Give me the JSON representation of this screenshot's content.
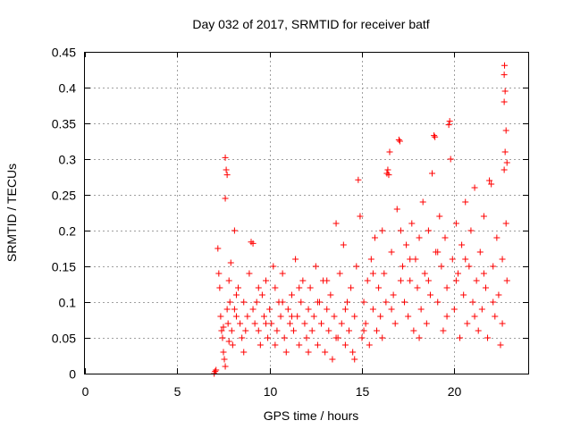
{
  "chart_data": {
    "type": "scatter",
    "title": "Day 032 of 2017, SRMTID for receiver batf",
    "xlabel": "GPS time / hours",
    "ylabel": "SRMTID / TECUs",
    "xlim": [
      0,
      24
    ],
    "ylim": [
      0,
      0.45
    ],
    "x_ticks": [
      0,
      5,
      10,
      15,
      20
    ],
    "x_tick_labels": [
      "0",
      "5",
      "10",
      "15",
      "20"
    ],
    "y_ticks": [
      0,
      0.05,
      0.1,
      0.15,
      0.2,
      0.25,
      0.3,
      0.35,
      0.4,
      0.45
    ],
    "y_tick_labels": [
      "0",
      "0.05",
      "0.1",
      "0.15",
      "0.2",
      "0.25",
      "0.3",
      "0.35",
      "0.4",
      "0.45"
    ],
    "grid": true,
    "marker": "plus",
    "color": "#ff0000",
    "series": [
      {
        "name": "SRMTID",
        "points": [
          [
            7.0,
            0.0
          ],
          [
            7.05,
            0.003
          ],
          [
            7.1,
            0.005
          ],
          [
            7.2,
            0.175
          ],
          [
            7.25,
            0.14
          ],
          [
            7.3,
            0.12
          ],
          [
            7.35,
            0.08
          ],
          [
            7.4,
            0.06
          ],
          [
            7.45,
            0.05
          ],
          [
            7.5,
            0.03
          ],
          [
            7.55,
            0.02
          ],
          [
            7.6,
            0.01
          ],
          [
            7.6,
            0.302
          ],
          [
            7.65,
            0.285
          ],
          [
            7.7,
            0.278
          ],
          [
            7.6,
            0.245
          ],
          [
            7.7,
            0.09
          ],
          [
            7.75,
            0.07
          ],
          [
            7.8,
            0.13
          ],
          [
            7.85,
            0.1
          ],
          [
            7.9,
            0.155
          ],
          [
            7.95,
            0.06
          ],
          [
            8.0,
            0.04
          ],
          [
            8.1,
            0.2
          ],
          [
            8.1,
            0.09
          ],
          [
            8.2,
            0.08
          ],
          [
            8.3,
            0.12
          ],
          [
            8.4,
            0.07
          ],
          [
            8.5,
            0.05
          ],
          [
            8.6,
            0.1
          ],
          [
            8.7,
            0.06
          ],
          [
            8.8,
            0.08
          ],
          [
            8.9,
            0.14
          ],
          [
            9.0,
            0.184
          ],
          [
            9.1,
            0.182
          ],
          [
            9.2,
            0.07
          ],
          [
            9.3,
            0.1
          ],
          [
            9.4,
            0.06
          ],
          [
            9.5,
            0.04
          ],
          [
            9.6,
            0.11
          ],
          [
            9.7,
            0.08
          ],
          [
            9.8,
            0.13
          ],
          [
            9.9,
            0.05
          ],
          [
            10.0,
            0.09
          ],
          [
            10.1,
            0.07
          ],
          [
            10.2,
            0.15
          ],
          [
            10.3,
            0.12
          ],
          [
            10.4,
            0.06
          ],
          [
            10.5,
            0.1
          ],
          [
            10.6,
            0.08
          ],
          [
            10.7,
            0.14
          ],
          [
            10.8,
            0.05
          ],
          [
            10.9,
            0.03
          ],
          [
            11.0,
            0.09
          ],
          [
            11.1,
            0.07
          ],
          [
            11.2,
            0.11
          ],
          [
            11.3,
            0.06
          ],
          [
            11.4,
            0.16
          ],
          [
            11.5,
            0.08
          ],
          [
            11.6,
            0.04
          ],
          [
            11.7,
            0.1
          ],
          [
            11.8,
            0.13
          ],
          [
            11.9,
            0.07
          ],
          [
            12.0,
            0.05
          ],
          [
            12.1,
            0.09
          ],
          [
            12.2,
            0.12
          ],
          [
            12.3,
            0.06
          ],
          [
            12.4,
            0.08
          ],
          [
            12.5,
            0.15
          ],
          [
            12.6,
            0.04
          ],
          [
            12.7,
            0.1
          ],
          [
            12.8,
            0.07
          ],
          [
            12.9,
            0.13
          ],
          [
            13.0,
            0.03
          ],
          [
            13.1,
            0.09
          ],
          [
            13.2,
            0.06
          ],
          [
            13.3,
            0.11
          ],
          [
            13.4,
            0.02
          ],
          [
            13.5,
            0.08
          ],
          [
            13.6,
            0.21
          ],
          [
            13.7,
            0.05
          ],
          [
            13.8,
            0.14
          ],
          [
            13.9,
            0.07
          ],
          [
            14.0,
            0.18
          ],
          [
            14.1,
            0.04
          ],
          [
            14.2,
            0.1
          ],
          [
            14.3,
            0.06
          ],
          [
            14.4,
            0.12
          ],
          [
            14.5,
            0.03
          ],
          [
            14.6,
            0.08
          ],
          [
            14.7,
            0.15
          ],
          [
            14.8,
            0.271
          ],
          [
            14.9,
            0.22
          ],
          [
            15.0,
            0.05
          ],
          [
            15.1,
            0.1
          ],
          [
            15.2,
            0.07
          ],
          [
            15.3,
            0.13
          ],
          [
            15.4,
            0.04
          ],
          [
            15.5,
            0.16
          ],
          [
            15.6,
            0.09
          ],
          [
            15.7,
            0.19
          ],
          [
            15.8,
            0.06
          ],
          [
            15.9,
            0.12
          ],
          [
            16.0,
            0.08
          ],
          [
            16.1,
            0.2
          ],
          [
            16.2,
            0.14
          ],
          [
            16.3,
            0.1
          ],
          [
            16.35,
            0.28
          ],
          [
            16.4,
            0.285
          ],
          [
            16.45,
            0.278
          ],
          [
            16.5,
            0.31
          ],
          [
            16.6,
            0.17
          ],
          [
            16.7,
            0.11
          ],
          [
            16.8,
            0.07
          ],
          [
            16.9,
            0.23
          ],
          [
            17.0,
            0.327
          ],
          [
            17.05,
            0.325
          ],
          [
            17.1,
            0.2
          ],
          [
            17.2,
            0.15
          ],
          [
            17.3,
            0.1
          ],
          [
            17.4,
            0.18
          ],
          [
            17.5,
            0.08
          ],
          [
            17.6,
            0.13
          ],
          [
            17.7,
            0.21
          ],
          [
            17.8,
            0.06
          ],
          [
            17.9,
            0.16
          ],
          [
            18.0,
            0.12
          ],
          [
            18.1,
            0.19
          ],
          [
            18.2,
            0.09
          ],
          [
            18.3,
            0.24
          ],
          [
            18.4,
            0.14
          ],
          [
            18.5,
            0.07
          ],
          [
            18.6,
            0.2
          ],
          [
            18.7,
            0.11
          ],
          [
            18.8,
            0.28
          ],
          [
            18.9,
            0.333
          ],
          [
            18.95,
            0.331
          ],
          [
            19.0,
            0.17
          ],
          [
            19.1,
            0.1
          ],
          [
            19.2,
            0.22
          ],
          [
            19.3,
            0.15
          ],
          [
            19.4,
            0.06
          ],
          [
            19.5,
            0.19
          ],
          [
            19.6,
            0.12
          ],
          [
            19.7,
            0.348
          ],
          [
            19.75,
            0.353
          ],
          [
            19.8,
            0.3
          ],
          [
            19.9,
            0.16
          ],
          [
            20.0,
            0.09
          ],
          [
            20.1,
            0.21
          ],
          [
            20.2,
            0.14
          ],
          [
            20.3,
            0.05
          ],
          [
            20.4,
            0.18
          ],
          [
            20.5,
            0.11
          ],
          [
            20.6,
            0.24
          ],
          [
            20.7,
            0.07
          ],
          [
            20.8,
            0.15
          ],
          [
            20.9,
            0.2
          ],
          [
            21.0,
            0.1
          ],
          [
            21.1,
            0.26
          ],
          [
            21.2,
            0.13
          ],
          [
            21.3,
            0.06
          ],
          [
            21.4,
            0.17
          ],
          [
            21.5,
            0.09
          ],
          [
            21.6,
            0.22
          ],
          [
            21.7,
            0.12
          ],
          [
            21.8,
            0.05
          ],
          [
            21.9,
            0.27
          ],
          [
            22.0,
            0.265
          ],
          [
            22.1,
            0.15
          ],
          [
            22.2,
            0.08
          ],
          [
            22.3,
            0.19
          ],
          [
            22.4,
            0.11
          ],
          [
            22.5,
            0.04
          ],
          [
            22.6,
            0.16
          ],
          [
            22.7,
            0.285
          ],
          [
            22.75,
            0.31
          ],
          [
            22.8,
            0.34
          ],
          [
            22.7,
            0.38
          ],
          [
            22.75,
            0.395
          ],
          [
            22.7,
            0.418
          ],
          [
            22.72,
            0.431
          ],
          [
            22.85,
            0.295
          ],
          [
            22.8,
            0.21
          ],
          [
            22.85,
            0.13
          ],
          [
            7.5,
            0.065
          ],
          [
            7.8,
            0.045
          ],
          [
            8.2,
            0.11
          ],
          [
            8.6,
            0.03
          ],
          [
            9.1,
            0.09
          ],
          [
            9.4,
            0.12
          ],
          [
            9.8,
            0.07
          ],
          [
            10.3,
            0.04
          ],
          [
            10.7,
            0.1
          ],
          [
            11.2,
            0.08
          ],
          [
            11.6,
            0.12
          ],
          [
            12.1,
            0.03
          ],
          [
            12.6,
            0.1
          ],
          [
            13.1,
            0.13
          ],
          [
            13.6,
            0.05
          ],
          [
            14.1,
            0.09
          ],
          [
            14.6,
            0.02
          ],
          [
            15.1,
            0.06
          ],
          [
            15.6,
            0.14
          ],
          [
            16.1,
            0.05
          ],
          [
            16.6,
            0.09
          ],
          [
            17.1,
            0.13
          ],
          [
            17.6,
            0.16
          ],
          [
            18.1,
            0.05
          ],
          [
            18.6,
            0.13
          ],
          [
            19.1,
            0.17
          ],
          [
            19.6,
            0.08
          ],
          [
            20.1,
            0.13
          ],
          [
            20.6,
            0.16
          ],
          [
            21.1,
            0.08
          ],
          [
            21.6,
            0.14
          ],
          [
            22.1,
            0.1
          ],
          [
            22.6,
            0.07
          ]
        ]
      }
    ]
  }
}
